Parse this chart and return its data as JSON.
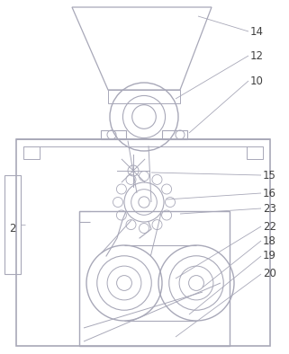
{
  "bg_color": "#ffffff",
  "line_color": "#a8a8b8",
  "label_color": "#404040",
  "fig_width": 3.21,
  "fig_height": 3.94,
  "dpi": 100
}
